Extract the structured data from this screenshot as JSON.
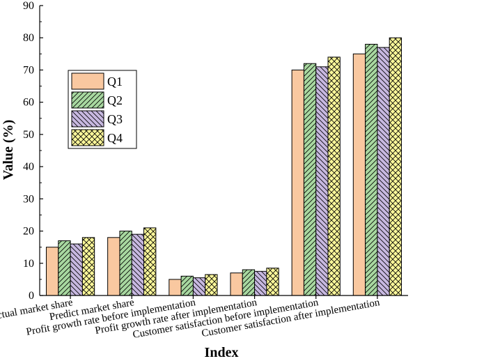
{
  "chart_data": {
    "type": "bar",
    "categories": [
      "Actual market share",
      "Predict market share",
      "Profit growth rate before implementation",
      "Profit growth rate after implementation",
      "Customer satisfaction before implementation",
      "Customer satisfaction after implementation"
    ],
    "series": [
      {
        "name": "Q1",
        "values": [
          15,
          18,
          5,
          7,
          70,
          75
        ],
        "color": "#f9c8a0",
        "pattern": "none"
      },
      {
        "name": "Q2",
        "values": [
          17,
          20,
          6,
          8,
          72,
          78
        ],
        "color": "#a8d8a0",
        "pattern": "diag-up"
      },
      {
        "name": "Q3",
        "values": [
          16,
          19,
          5.5,
          7.5,
          71,
          77
        ],
        "color": "#c7b8e0",
        "pattern": "diag-down"
      },
      {
        "name": "Q4",
        "values": [
          18,
          21,
          6.5,
          8.5,
          74,
          80
        ],
        "color": "#fbf79a",
        "pattern": "cross"
      }
    ],
    "title": "",
    "xlabel": "Index",
    "ylabel": "Value (%)",
    "ylim": [
      0,
      90
    ],
    "yticks": [
      0,
      10,
      20,
      30,
      40,
      50,
      60,
      70,
      80,
      90
    ],
    "grid": false,
    "legend_position": "center-left"
  }
}
